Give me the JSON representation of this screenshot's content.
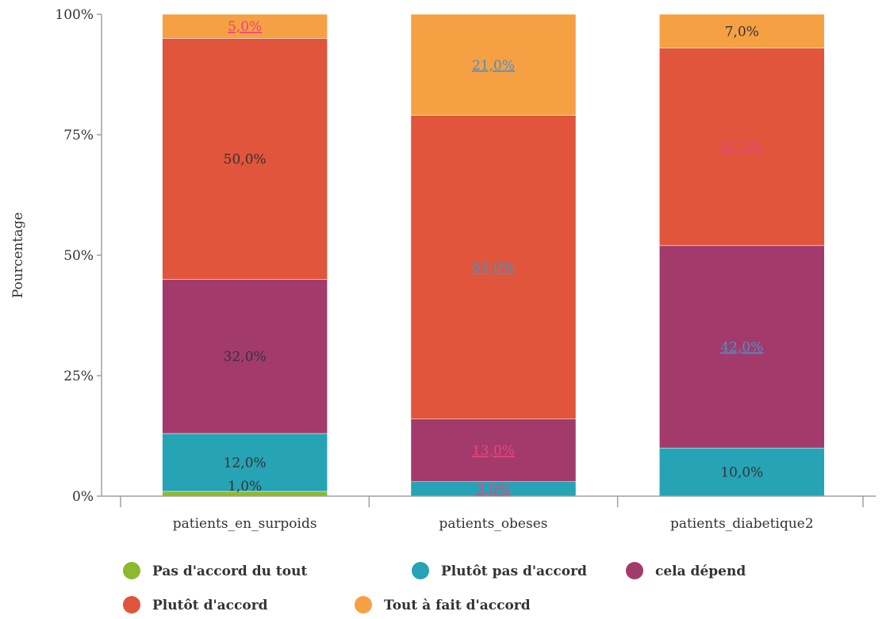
{
  "chart_data": {
    "type": "bar",
    "stacked": true,
    "percent": true,
    "categories": [
      "patients_en_surpoids",
      "patients_obeses",
      "patients_diabetique2"
    ],
    "series": [
      {
        "name": "Pas d'accord du tout",
        "color": "#8db92e",
        "values": [
          1,
          0,
          0
        ]
      },
      {
        "name": "Plutôt pas d'accord",
        "color": "#26a3b4",
        "values": [
          12,
          3,
          10
        ]
      },
      {
        "name": "cela dépend",
        "color": "#a23b6c",
        "values": [
          32,
          13,
          42
        ]
      },
      {
        "name": "Plutôt d'accord",
        "color": "#e0553b",
        "values": [
          50,
          63,
          41
        ]
      },
      {
        "name": "Tout à fait d'accord",
        "color": "#f6a044",
        "values": [
          5,
          21,
          7
        ]
      }
    ],
    "data_labels": [
      [
        "1,0%",
        "",
        ""
      ],
      [
        "12,0%",
        "3,0%",
        "10,0%"
      ],
      [
        "32,0%",
        "13,0%",
        "42,0%"
      ],
      [
        "50,0%",
        "63,0%",
        "41,0%"
      ],
      [
        "5,0%",
        "21,0%",
        "7,0%"
      ]
    ],
    "label_styles": [
      [
        "dark",
        "",
        ""
      ],
      [
        "dark",
        "pink-underline",
        "dark"
      ],
      [
        "dark",
        "pink-underline",
        "blue-underline"
      ],
      [
        "dark",
        "blue-underline",
        "pink-underline"
      ],
      [
        "pink-underline",
        "blue-underline",
        "dark"
      ]
    ],
    "label_colors": {
      "dark": "#333333",
      "pink-underline": "#e8457a",
      "blue-underline": "#4f8fbf"
    },
    "ylabel": "Pourcentage",
    "xlabel": "",
    "ylim": [
      0,
      100
    ],
    "yticks": [
      0,
      25,
      50,
      75,
      100
    ],
    "ytick_labels": [
      "0%",
      "25%",
      "50%",
      "75%",
      "100%"
    ],
    "legend_position": "bottom",
    "grid": false,
    "axis_color": "#a0a0a0"
  }
}
